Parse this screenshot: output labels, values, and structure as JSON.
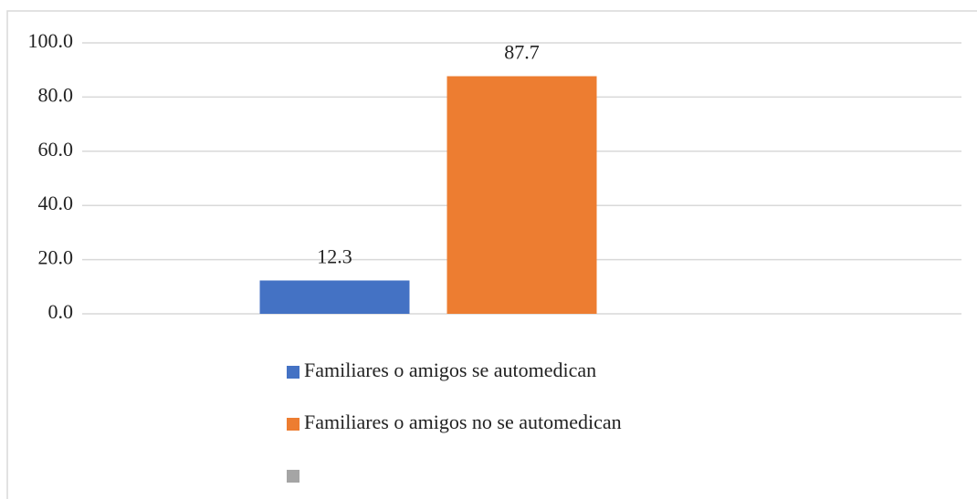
{
  "chart_data": {
    "type": "bar",
    "series": [
      {
        "name": "Familiares o amigos se automedican",
        "color": "#4472c4",
        "values": [
          12.3
        ]
      },
      {
        "name": "Familiares o amigos no se automedican",
        "color": "#ed7d31",
        "values": [
          87.7
        ]
      },
      {
        "name": null,
        "color": "#a5a5a5",
        "values": [
          null
        ]
      }
    ],
    "ylim": [
      0,
      100
    ],
    "yticks": [
      {
        "value": 0,
        "label": "0.0"
      },
      {
        "value": 20,
        "label": "20.0"
      },
      {
        "value": 40,
        "label": "40.0"
      },
      {
        "value": 60,
        "label": "60.0"
      },
      {
        "value": 80,
        "label": "80.0"
      },
      {
        "value": 100,
        "label": "100.0"
      }
    ],
    "grid": true
  }
}
